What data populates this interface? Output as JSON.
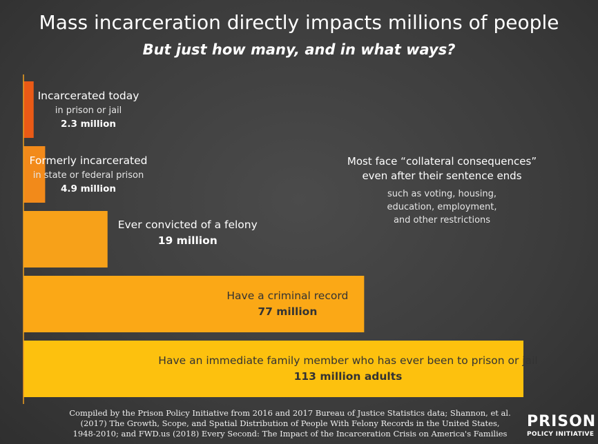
{
  "title": "Mass incarceration directly impacts millions of people",
  "subtitle": "But just how many, and in what ways?",
  "chart_data": {
    "type": "bar",
    "orientation": "horizontal",
    "unit": "million",
    "max_value": 113,
    "bars": [
      {
        "label": "Incarcerated today",
        "sublabel": "in prison or jail",
        "value": 2.3,
        "value_label": "2.3 million",
        "color": "#ea5a16"
      },
      {
        "label": "Formerly incarcerated",
        "sublabel": "in state or federal prison",
        "value": 4.9,
        "value_label": "4.9 million",
        "color": "#f28a1a"
      },
      {
        "label": "Ever convicted of a felony",
        "sublabel": "",
        "value": 19,
        "value_label": "19 million",
        "color": "#f7a119"
      },
      {
        "label": "Have a criminal record",
        "sublabel": "",
        "value": 77,
        "value_label": "77 million",
        "color": "#fba816"
      },
      {
        "label": "Have an immediate family member who has ever been to prison or jail",
        "sublabel": "",
        "value": 113,
        "value_label": "113 million adults",
        "color": "#fdc10e"
      }
    ]
  },
  "note": {
    "heading_line1": "Most face “collateral consequences”",
    "heading_line2": "even after their sentence ends",
    "body_line1": "such as voting, housing,",
    "body_line2": "education, employment,",
    "body_line3": "and other restrictions"
  },
  "source": {
    "line1": "Compiled by the Prison Policy Initiative from 2016 and 2017 Bureau of Justice Statistics data; Shannon, et al.",
    "line2": "(2017) The Growth, Scope, and Spatial Distribution of People With Felony Records in the United States,",
    "line3": "1948-2010; and FWD.us (2018) Every Second: The Impact of the Incarceration Crisis on America's Families"
  },
  "logo": {
    "top": "PRISON",
    "bottom": "POLICY INITIATIVE"
  },
  "colors": {
    "background": "#3c3c3c",
    "axis": "#f0a020",
    "dark_text": "#333333"
  }
}
